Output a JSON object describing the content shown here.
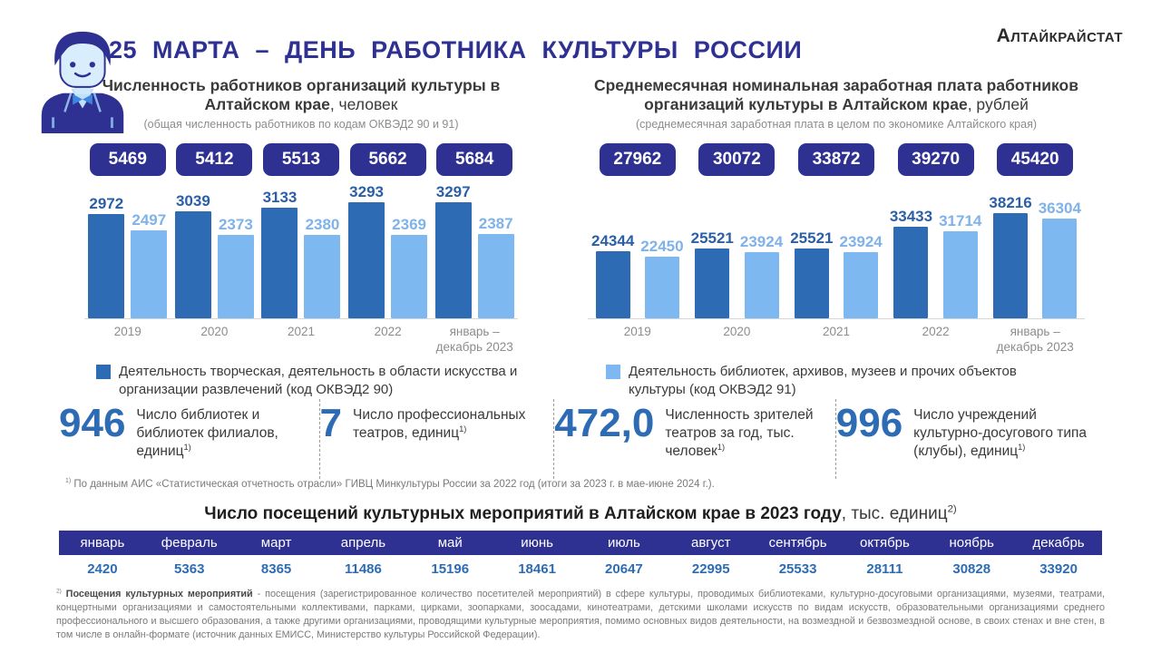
{
  "header": {
    "title": "25 МАРТА – ДЕНЬ РАБОТНИКА КУЛЬТУРЫ РОССИИ",
    "brand": "Алтайкрайстат"
  },
  "colors": {
    "accent_indigo": "#2e3192",
    "bar_dark_blue": "#2d6cb5",
    "bar_light_blue": "#7db9f0",
    "stat_number_blue": "#2d6cb5"
  },
  "chart_data": [
    {
      "type": "bar",
      "title_bold": "Численность работников организаций культуры в Алтайском крае",
      "title_tail": ", человек",
      "subtitle": "(общая численность работников по кодам ОКВЭД2 90 и 91)",
      "categories": [
        "2019",
        "2020",
        "2021",
        "2022",
        "январь –\nдекабрь 2023"
      ],
      "totals": [
        5469,
        5412,
        5513,
        5662,
        5684
      ],
      "series": [
        {
          "name": "Деятельность творческая, деятельность в области искусства и организации развлечений (код ОКВЭД2 90)",
          "color": "#2d6cb5",
          "label_color": "#2a5fa8",
          "values": [
            2972,
            3039,
            3133,
            3293,
            3297
          ]
        },
        {
          "name": "Деятельность библиотек, архивов, музеев и прочих объектов культуры (код ОКВЭД2 91)",
          "color": "#7db9f0",
          "label_color": "#7fb2e9",
          "values": [
            2497,
            2373,
            2380,
            2369,
            2387
          ]
        }
      ],
      "legend": {
        "color": "#2d6cb5",
        "label": "Деятельность творческая, деятельность в области искусства и организации развлечений (код ОКВЭД2 90)"
      },
      "xlabel": "",
      "ylabel": "",
      "grid": false
    },
    {
      "type": "bar",
      "title_bold": "Среднемесячная номинальная заработная плата работников организаций культуры в Алтайском крае",
      "title_tail": ", рублей",
      "subtitle": "(среднемесячная заработная плата в целом по экономике Алтайского края)",
      "categories": [
        "2019",
        "2020",
        "2021",
        "2022",
        "январь –\nдекабрь 2023"
      ],
      "totals": [
        27962,
        30072,
        33872,
        39270,
        45420
      ],
      "series": [
        {
          "name": "Деятельность творческая, деятельность в области искусства и организации развлечений (код ОКВЭД2 90)",
          "color": "#2d6cb5",
          "label_color": "#2a5fa8",
          "values": [
            24344,
            25521,
            25521,
            33433,
            38216
          ]
        },
        {
          "name": "Деятельность библиотек, архивов, музеев и прочих объектов культуры (код ОКВЭД2 91)",
          "color": "#7db9f0",
          "label_color": "#7fb2e9",
          "values": [
            22450,
            23924,
            23924,
            31714,
            36304
          ]
        }
      ],
      "legend": {
        "color": "#7db9f0",
        "label": "Деятельность библиотек, архивов, музеев и прочих объектов культуры  (код ОКВЭД2 91)"
      },
      "xlabel": "",
      "ylabel": "",
      "grid": false
    }
  ],
  "stats": [
    {
      "value": "946",
      "label": "Число библиотек и библиотек филиалов, единиц",
      "sup": "1)"
    },
    {
      "value": "7",
      "label": "Число профессиональных театров, единиц",
      "sup": "1)"
    },
    {
      "value": "472,0",
      "label": "Численность зрителей театров за год, тыс. человек",
      "sup": "1)"
    },
    {
      "value": "996",
      "label": "Число учреждений культурно-досугового типа (клубы), единиц",
      "sup": "1)"
    }
  ],
  "footnote1": {
    "marker": "1)",
    "text": " По данным АИС «Статистическая отчетность отрасли» ГИВЦ Минкультуры России за 2022 год (итоги за 2023 г. в мае-июне 2024 г.)."
  },
  "table": {
    "title_bold": "Число посещений культурных мероприятий в Алтайском крае в 2023 году",
    "title_tail": ", тыс. единиц",
    "title_sup": "2)",
    "months": [
      "январь",
      "февраль",
      "март",
      "апрель",
      "май",
      "июнь",
      "июль",
      "август",
      "сентябрь",
      "октябрь",
      "ноябрь",
      "декабрь"
    ],
    "values": [
      "2420",
      "5363",
      "8365",
      "11486",
      "15196",
      "18461",
      "20647",
      "22995",
      "25533",
      "28111",
      "30828",
      "33920"
    ]
  },
  "footnote2": {
    "marker": "2)",
    "bold": " Посещения культурных мероприятий",
    "text": " - посещения (зарегистрированное количество посетителей мероприятий) в сфере культуры, проводимых библиотеками, культурно-досуговыми организациями, музеями, театрами, концертными организациями и самостоятельными коллективами, парками, цирками, зоопарками, зоосадами, кинотеатрами, детскими школами искусств по видам искусств, образовательными организациями среднего профессионального и высшего образования, а также другими организациями, проводящими культурные мероприятия, помимо основных видов деятельности, на возмездной и безвозмездной основе, в своих стенах и вне стен, в том числе в онлайн-формате (источник данных ЕМИСС, Министерство культуры Российской Федерации)."
  }
}
